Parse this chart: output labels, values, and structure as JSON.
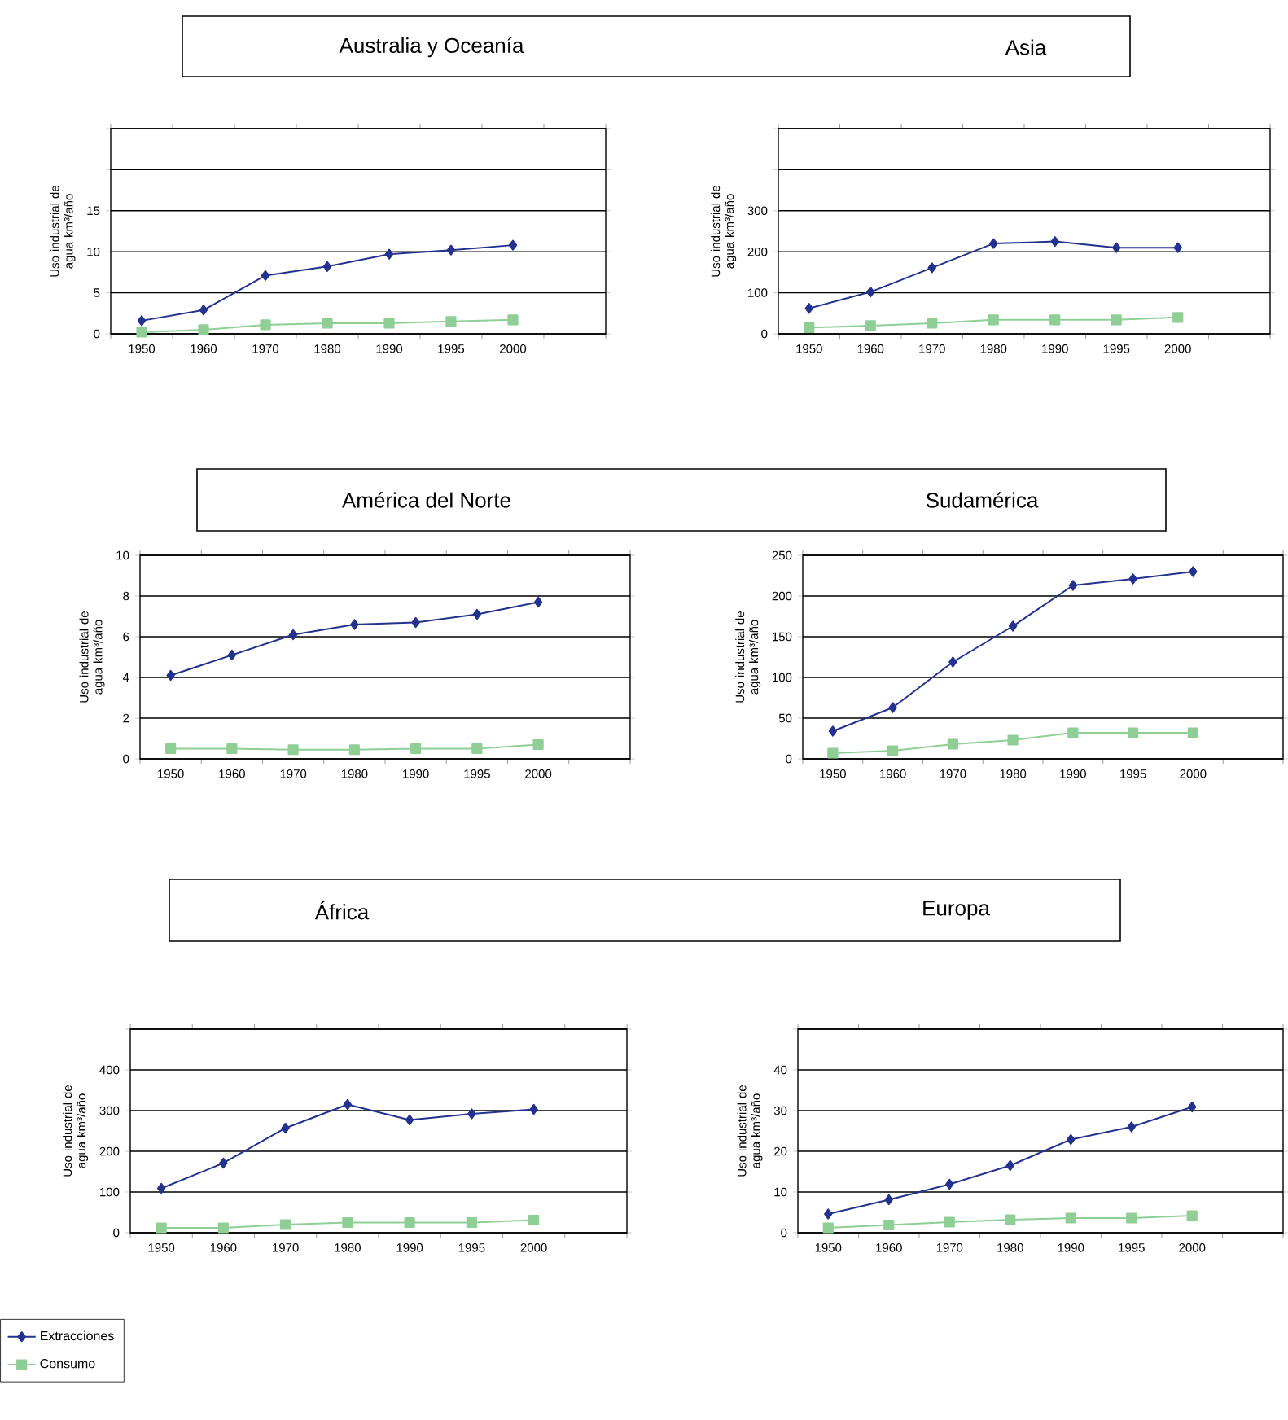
{
  "chart_data": [
    {
      "type": "line",
      "title": "Australia y Oceanía",
      "ylabel": "Uso industrial de agua km³/año",
      "categories": [
        "1950",
        "1960",
        "1970",
        "1980",
        "1990",
        "1995",
        "2000"
      ],
      "ylim": [
        0,
        25
      ],
      "yticks": [
        0,
        5,
        10,
        15,
        {
          "value": 20,
          "label": null
        },
        {
          "value": 25,
          "label": null
        }
      ],
      "grid": "y",
      "series": [
        {
          "color": "#23318f",
          "marker": "diamond",
          "values": [
            1.6,
            2.9,
            7.1,
            8.2,
            9.7,
            10.2,
            10.8
          ]
        },
        {
          "color": "#8fce95",
          "marker": "square",
          "values": [
            0.2,
            0.5,
            1.1,
            1.3,
            1.3,
            1.5,
            1.7
          ]
        }
      ]
    },
    {
      "type": "line",
      "title": "Asia",
      "ylabel": "Uso industrial de agua km³/año",
      "categories": [
        "1950",
        "1960",
        "1970",
        "1980",
        "1990",
        "1995",
        "2000"
      ],
      "ylim": [
        0,
        500
      ],
      "yticks": [
        0,
        100,
        200,
        300,
        {
          "value": 400,
          "label": null
        },
        {
          "value": 500,
          "label": null
        }
      ],
      "grid": "y",
      "series": [
        {
          "color": "#23318f",
          "marker": "diamond",
          "values": [
            62,
            102,
            161,
            220,
            225,
            210,
            210
          ]
        },
        {
          "color": "#8fce95",
          "marker": "square",
          "values": [
            15,
            20,
            26,
            34,
            34,
            34,
            40
          ]
        }
      ]
    },
    {
      "type": "line",
      "title": "América del Norte",
      "ylabel": "Uso industrial de agua km³/año",
      "categories": [
        "1950",
        "1960",
        "1970",
        "1980",
        "1990",
        "1995",
        "2000"
      ],
      "ylim": [
        0,
        10
      ],
      "yticks": [
        0,
        2,
        4,
        6,
        8,
        10
      ],
      "grid": "y",
      "series": [
        {
          "color": "#23318f",
          "marker": "diamond",
          "values": [
            4.1,
            5.1,
            6.1,
            6.6,
            6.7,
            7.1,
            7.7
          ]
        },
        {
          "color": "#8fce95",
          "marker": "square",
          "values": [
            0.5,
            0.5,
            0.45,
            0.45,
            0.5,
            0.5,
            0.7
          ]
        }
      ]
    },
    {
      "type": "line",
      "title": "Sudamérica",
      "ylabel": "Uso industrial de agua km³/año",
      "categories": [
        "1950",
        "1960",
        "1970",
        "1980",
        "1990",
        "1995",
        "2000"
      ],
      "ylim": [
        0,
        250
      ],
      "yticks": [
        0,
        50,
        100,
        150,
        200,
        250
      ],
      "grid": "y",
      "series": [
        {
          "color": "#23318f",
          "marker": "diamond",
          "values": [
            34,
            63,
            119,
            163,
            213,
            221,
            230
          ]
        },
        {
          "color": "#8fce95",
          "marker": "square",
          "values": [
            7,
            10,
            18,
            23,
            32,
            32,
            32
          ]
        }
      ]
    },
    {
      "type": "line",
      "title": "África",
      "ylabel": "Uso industrial de agua km³/año",
      "categories": [
        "1950",
        "1960",
        "1970",
        "1980",
        "1990",
        "1995",
        "2000"
      ],
      "ylim": [
        0,
        500
      ],
      "yticks": [
        0,
        100,
        200,
        300,
        400,
        {
          "value": 500,
          "label": null
        }
      ],
      "grid": "y",
      "legend": "bottom left",
      "series": [
        {
          "name": "Extracciones",
          "color": "#23318f",
          "marker": "diamond",
          "values": [
            109,
            171,
            257,
            315,
            277,
            292,
            303
          ]
        },
        {
          "name": "Consumo",
          "color": "#8fce95",
          "marker": "square",
          "values": [
            12,
            12,
            20,
            25,
            25,
            25,
            31
          ]
        }
      ]
    },
    {
      "type": "line",
      "title": "Europa",
      "ylabel": "Uso industrial de agua km³/año",
      "categories": [
        "1950",
        "1960",
        "1970",
        "1980",
        "1990",
        "1995",
        "2000"
      ],
      "ylim": [
        0,
        50
      ],
      "yticks": [
        0,
        10,
        20,
        30,
        40,
        {
          "value": 50,
          "label": null
        }
      ],
      "grid": "y",
      "series": [
        {
          "color": "#23318f",
          "marker": "diamond",
          "values": [
            4.6,
            8.1,
            11.9,
            16.5,
            22.9,
            26.0,
            30.9
          ]
        },
        {
          "color": "#8fce95",
          "marker": "square",
          "values": [
            1.2,
            1.9,
            2.6,
            3.2,
            3.6,
            3.6,
            4.2
          ]
        }
      ]
    }
  ]
}
